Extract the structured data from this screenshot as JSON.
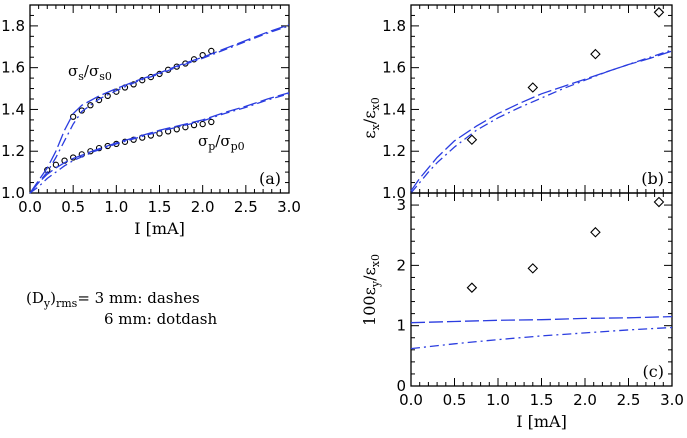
{
  "chart_data": [
    {
      "id": "a",
      "type": "scatter",
      "panel_label": "(a)",
      "xlabel": "I [mA]",
      "ylabel": "",
      "xlim": [
        0,
        3
      ],
      "ylim": [
        1.0,
        1.9
      ],
      "xticks": [
        "0.0",
        "0.5",
        "1.0",
        "1.5",
        "2.0",
        "2.5",
        "3.0"
      ],
      "yticks": [
        "1.0",
        "1.2",
        "1.4",
        "1.6",
        "1.8"
      ],
      "xtick_values": [
        0,
        0.5,
        1.0,
        1.5,
        2.0,
        2.5,
        3.0
      ],
      "ytick_values": [
        1.0,
        1.2,
        1.4,
        1.6,
        1.8
      ],
      "annotations": {
        "sigma_s": "σs/σs0",
        "sigma_p": "σp/σp0"
      },
      "series": [
        {
          "style": "circles",
          "x": [
            0.5,
            0.6,
            0.7,
            0.8,
            0.9,
            1.0,
            1.1,
            1.2,
            1.3,
            1.4,
            1.5,
            1.6,
            1.7,
            1.8,
            1.9,
            2.0,
            2.1
          ],
          "y": [
            1.365,
            1.395,
            1.42,
            1.445,
            1.465,
            1.485,
            1.505,
            1.52,
            1.54,
            1.555,
            1.57,
            1.59,
            1.605,
            1.62,
            1.64,
            1.66,
            1.68
          ]
        },
        {
          "style": "circles",
          "x": [
            0.2,
            0.3,
            0.4,
            0.5,
            0.6,
            0.7,
            0.8,
            0.9,
            1.0,
            1.1,
            1.2,
            1.3,
            1.4,
            1.5,
            1.6,
            1.7,
            1.8,
            1.9,
            2.0,
            2.1
          ],
          "y": [
            1.11,
            1.135,
            1.155,
            1.17,
            1.185,
            1.2,
            1.215,
            1.225,
            1.235,
            1.245,
            1.255,
            1.265,
            1.275,
            1.285,
            1.295,
            1.305,
            1.315,
            1.325,
            1.33,
            1.34
          ]
        },
        {
          "style": "dash",
          "x": [
            0.0,
            0.1,
            0.2,
            0.3,
            0.4,
            0.5,
            0.6,
            0.8,
            1.0,
            1.25,
            1.5,
            1.75,
            2.0,
            2.25,
            2.5,
            2.75,
            3.0
          ],
          "y": [
            1.0,
            1.06,
            1.12,
            1.2,
            1.3,
            1.38,
            1.42,
            1.465,
            1.5,
            1.54,
            1.575,
            1.615,
            1.65,
            1.69,
            1.73,
            1.77,
            1.805
          ]
        },
        {
          "style": "dotdash",
          "x": [
            0.0,
            0.1,
            0.2,
            0.3,
            0.4,
            0.5,
            0.6,
            0.8,
            1.0,
            1.25,
            1.5,
            1.75,
            2.0,
            2.25,
            2.5,
            2.75,
            3.0
          ],
          "y": [
            1.0,
            1.05,
            1.1,
            1.17,
            1.25,
            1.33,
            1.39,
            1.45,
            1.49,
            1.535,
            1.57,
            1.61,
            1.645,
            1.685,
            1.725,
            1.765,
            1.8
          ]
        },
        {
          "style": "dash",
          "x": [
            0.0,
            0.1,
            0.2,
            0.3,
            0.4,
            0.5,
            0.75,
            1.0,
            1.25,
            1.5,
            1.75,
            2.0,
            2.25,
            2.5,
            2.75,
            3.0
          ],
          "y": [
            1.0,
            1.05,
            1.09,
            1.12,
            1.145,
            1.165,
            1.205,
            1.24,
            1.27,
            1.3,
            1.325,
            1.35,
            1.385,
            1.415,
            1.45,
            1.48
          ]
        },
        {
          "style": "dotdash",
          "x": [
            0.0,
            0.1,
            0.2,
            0.3,
            0.4,
            0.5,
            0.75,
            1.0,
            1.25,
            1.5,
            1.75,
            2.0,
            2.25,
            2.5,
            2.75,
            3.0
          ],
          "y": [
            1.0,
            1.03,
            1.07,
            1.1,
            1.13,
            1.155,
            1.2,
            1.235,
            1.265,
            1.295,
            1.32,
            1.345,
            1.38,
            1.41,
            1.445,
            1.475
          ]
        }
      ]
    },
    {
      "id": "b",
      "type": "scatter",
      "panel_label": "(b)",
      "xlabel": "",
      "ylabel": "εx/εx0",
      "xlim": [
        0,
        3
      ],
      "ylim": [
        1.0,
        1.9
      ],
      "xticks": [],
      "yticks": [
        "1.0",
        "1.2",
        "1.4",
        "1.6",
        "1.8"
      ],
      "xtick_values": [
        0,
        0.5,
        1.0,
        1.5,
        2.0,
        2.5,
        3.0
      ],
      "ytick_values": [
        1.0,
        1.2,
        1.4,
        1.6,
        1.8
      ],
      "series": [
        {
          "style": "diamonds",
          "x": [
            0.7,
            1.4,
            2.12,
            2.85
          ],
          "y": [
            1.255,
            1.505,
            1.665,
            1.865
          ]
        },
        {
          "style": "dash",
          "x": [
            0.0,
            0.1,
            0.2,
            0.3,
            0.5,
            0.75,
            1.0,
            1.25,
            1.5,
            1.75,
            2.0,
            2.25,
            2.5,
            2.75,
            3.0
          ],
          "y": [
            1.01,
            1.07,
            1.12,
            1.17,
            1.25,
            1.32,
            1.38,
            1.43,
            1.475,
            1.51,
            1.545,
            1.58,
            1.615,
            1.645,
            1.68
          ]
        },
        {
          "style": "dotdash",
          "x": [
            0.0,
            0.1,
            0.2,
            0.3,
            0.5,
            0.75,
            1.0,
            1.25,
            1.5,
            1.75,
            2.0,
            2.25,
            2.5,
            2.75,
            3.0
          ],
          "y": [
            1.0,
            1.05,
            1.1,
            1.145,
            1.22,
            1.3,
            1.36,
            1.41,
            1.455,
            1.5,
            1.54,
            1.58,
            1.615,
            1.65,
            1.685
          ]
        }
      ]
    },
    {
      "id": "c",
      "type": "scatter",
      "panel_label": "(c)",
      "xlabel": "I [mA]",
      "ylabel": "100εy/εx0",
      "xlim": [
        0,
        3
      ],
      "ylim": [
        0,
        3.2
      ],
      "xticks": [
        "0.0",
        "0.5",
        "1.0",
        "1.5",
        "2.0",
        "2.5",
        "3.0"
      ],
      "yticks": [
        "0",
        "1",
        "2",
        "3"
      ],
      "xtick_values": [
        0,
        0.5,
        1.0,
        1.5,
        2.0,
        2.5,
        3.0
      ],
      "ytick_values": [
        0,
        1,
        2,
        3
      ],
      "series": [
        {
          "style": "diamonds",
          "x": [
            0.7,
            1.4,
            2.12,
            2.85
          ],
          "y": [
            1.63,
            1.95,
            2.55,
            3.05
          ]
        },
        {
          "style": "dash",
          "x": [
            0.0,
            0.5,
            1.0,
            1.5,
            2.0,
            2.5,
            3.0
          ],
          "y": [
            1.05,
            1.07,
            1.09,
            1.1,
            1.12,
            1.13,
            1.15
          ]
        },
        {
          "style": "dotdash",
          "x": [
            0.0,
            0.5,
            1.0,
            1.5,
            2.0,
            2.5,
            3.0
          ],
          "y": [
            0.62,
            0.7,
            0.77,
            0.83,
            0.88,
            0.93,
            0.97
          ]
        }
      ]
    }
  ],
  "legend": {
    "prefix": "(Dy)rms=",
    "line1": "3 mm: dashes",
    "line2": "6 mm: dotdash"
  },
  "colors": {
    "curve": "#2b3de0",
    "marker": "#000000"
  }
}
